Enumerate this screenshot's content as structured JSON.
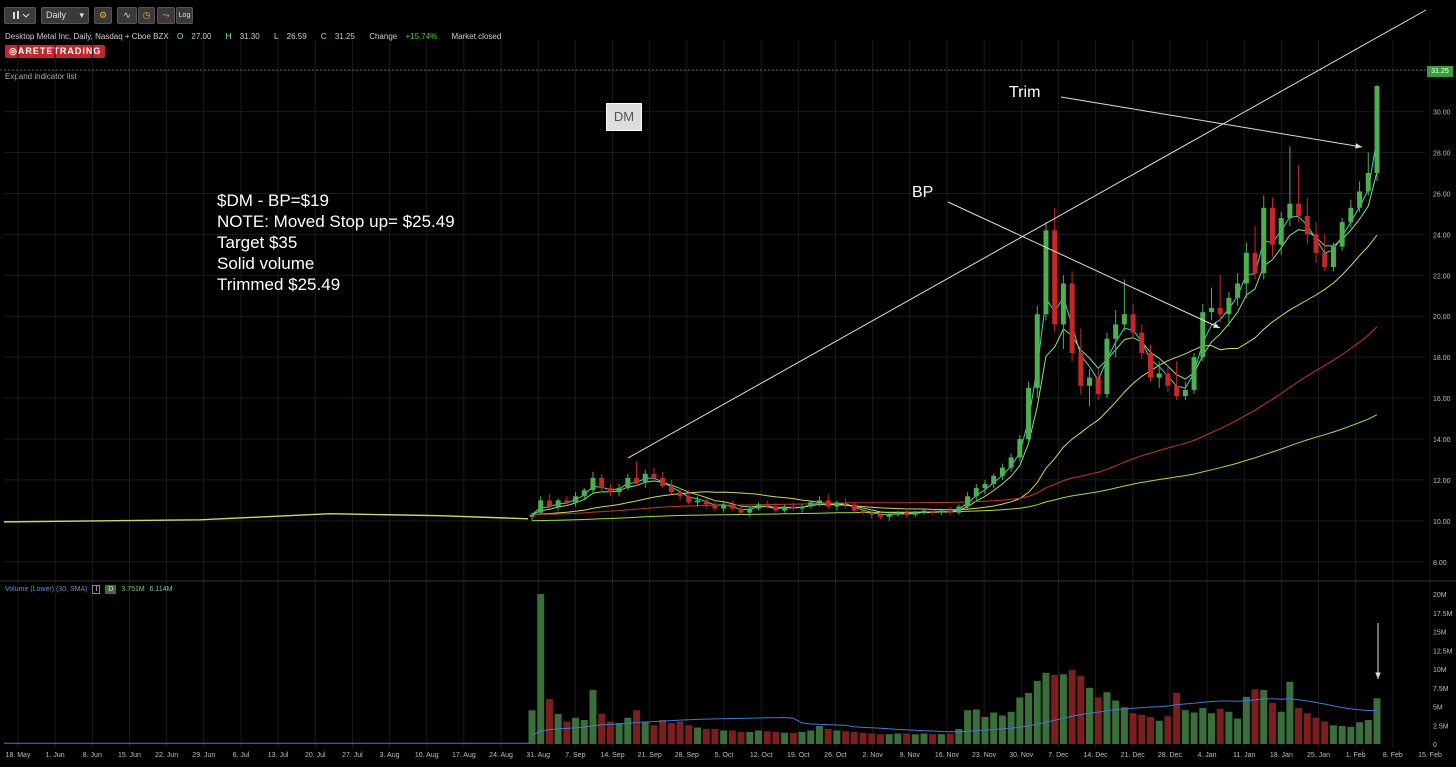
{
  "toolbar": {
    "interval": "Daily",
    "log_label": "Log"
  },
  "header": {
    "symbol_desc": "Desktop Metal Inc, Daily, Nasdaq + Cboe BZX",
    "open_label": "O",
    "open": "27.00",
    "high_label": "H",
    "high": "31.30",
    "low_label": "L",
    "low": "26.59",
    "close_label": "C",
    "close": "31.25",
    "change_label": "Change",
    "change": "+15.74%",
    "status": "Market closed"
  },
  "brand": "ARETETRADING",
  "expand_link": "Expand indicator list",
  "volume_indicator": {
    "name": "Volume (Lower) (30, SMA)",
    "box1": "I",
    "box2": "D",
    "value1": "3.751M",
    "value2": "6.114M"
  },
  "badge": "DM",
  "note_lines": [
    "$DM - BP=$19",
    "NOTE: Moved Stop up= $25.49",
    "Target $35",
    "Solid volume",
    "Trimmed $25.49"
  ],
  "annotations": {
    "trim": "Trim",
    "bp": "BP"
  },
  "last_price_tag": "31.25",
  "colors": {
    "up": "#4caf50",
    "down": "#c62828",
    "vol_up": "#3a6e3a",
    "vol_down": "#7a1e1e",
    "ema_fast": "#3fd0c8",
    "ema_mid": "#8fe07a",
    "ma_50": "#d4d46a",
    "ma_100": "#c0392b",
    "ma_200": "#9be04e",
    "vol_sma": "#3d7ad6",
    "grid": "#1a1a1a"
  },
  "chart_data": {
    "type": "candlestick",
    "price_axis": {
      "ylim": [
        7.5,
        33.5
      ],
      "ticks": [
        "8.00",
        "10.00",
        "12.00",
        "14.00",
        "16.00",
        "18.00",
        "20.00",
        "22.00",
        "24.00",
        "26.00",
        "28.00",
        "30.00",
        "32.00"
      ]
    },
    "volume_axis": {
      "ylim": [
        0,
        20
      ],
      "unit": "M",
      "ticks": [
        "0",
        "2.5M",
        "5M",
        "7.5M",
        "10M",
        "12.5M",
        "15M",
        "17.5M",
        "20M"
      ]
    },
    "x_ticks": [
      "18. May",
      "1. Jun",
      "8. Jun",
      "15. Jun",
      "22. Jun",
      "29. Jun",
      "6. Jul",
      "13. Jul",
      "20. Jul",
      "27. Jul",
      "3. Aug",
      "10. Aug",
      "17. Aug",
      "24. Aug",
      "31. Aug",
      "7. Sep",
      "14. Sep",
      "21. Sep",
      "28. Sep",
      "5. Oct",
      "12. Oct",
      "19. Oct",
      "26. Oct",
      "2. Nov",
      "9. Nov",
      "16. Nov",
      "23. Nov",
      "30. Nov",
      "7. Dec",
      "14. Dec",
      "21. Dec",
      "28. Dec",
      "4. Jan",
      "11. Jan",
      "18. Jan",
      "25. Jan",
      "1. Feb",
      "8. Feb",
      "15. Feb"
    ],
    "candles": [
      {
        "o": 10.2,
        "h": 10.4,
        "l": 10.0,
        "c": 10.3,
        "v": 4.5
      },
      {
        "o": 10.4,
        "h": 11.2,
        "l": 10.3,
        "c": 11.0,
        "v": 20.0
      },
      {
        "o": 11.0,
        "h": 11.3,
        "l": 10.6,
        "c": 10.7,
        "v": 6.0
      },
      {
        "o": 10.7,
        "h": 11.1,
        "l": 10.5,
        "c": 11.0,
        "v": 4.0
      },
      {
        "o": 11.0,
        "h": 11.2,
        "l": 10.8,
        "c": 10.9,
        "v": 3.0
      },
      {
        "o": 10.9,
        "h": 11.4,
        "l": 10.7,
        "c": 11.2,
        "v": 3.5
      },
      {
        "o": 11.2,
        "h": 11.6,
        "l": 11.0,
        "c": 11.5,
        "v": 3.2
      },
      {
        "o": 11.5,
        "h": 12.4,
        "l": 11.3,
        "c": 12.1,
        "v": 7.2
      },
      {
        "o": 12.1,
        "h": 12.3,
        "l": 11.4,
        "c": 11.6,
        "v": 4.0
      },
      {
        "o": 11.6,
        "h": 11.8,
        "l": 11.2,
        "c": 11.4,
        "v": 3.0
      },
      {
        "o": 11.4,
        "h": 11.8,
        "l": 11.2,
        "c": 11.6,
        "v": 2.8
      },
      {
        "o": 11.6,
        "h": 12.3,
        "l": 11.5,
        "c": 12.1,
        "v": 3.5
      },
      {
        "o": 12.1,
        "h": 12.9,
        "l": 11.7,
        "c": 11.9,
        "v": 4.5
      },
      {
        "o": 11.9,
        "h": 12.5,
        "l": 11.6,
        "c": 12.3,
        "v": 3.0
      },
      {
        "o": 12.3,
        "h": 12.6,
        "l": 12.0,
        "c": 12.1,
        "v": 2.5
      },
      {
        "o": 12.1,
        "h": 12.4,
        "l": 11.6,
        "c": 11.7,
        "v": 3.2
      },
      {
        "o": 11.7,
        "h": 12.0,
        "l": 11.3,
        "c": 11.4,
        "v": 2.8
      },
      {
        "o": 11.4,
        "h": 11.6,
        "l": 11.0,
        "c": 11.2,
        "v": 3.0
      },
      {
        "o": 11.2,
        "h": 11.5,
        "l": 10.8,
        "c": 10.9,
        "v": 2.5
      },
      {
        "o": 10.9,
        "h": 11.2,
        "l": 10.7,
        "c": 11.0,
        "v": 2.2
      },
      {
        "o": 11.0,
        "h": 11.1,
        "l": 10.6,
        "c": 10.8,
        "v": 2.0
      },
      {
        "o": 10.8,
        "h": 11.0,
        "l": 10.5,
        "c": 10.6,
        "v": 2.0
      },
      {
        "o": 10.6,
        "h": 10.9,
        "l": 10.4,
        "c": 10.8,
        "v": 1.8
      },
      {
        "o": 10.8,
        "h": 11.0,
        "l": 10.5,
        "c": 10.6,
        "v": 1.8
      },
      {
        "o": 10.6,
        "h": 10.8,
        "l": 10.3,
        "c": 10.4,
        "v": 1.6
      },
      {
        "o": 10.4,
        "h": 10.7,
        "l": 10.2,
        "c": 10.6,
        "v": 1.6
      },
      {
        "o": 10.6,
        "h": 10.9,
        "l": 10.5,
        "c": 10.8,
        "v": 1.8
      },
      {
        "o": 10.8,
        "h": 11.0,
        "l": 10.6,
        "c": 10.7,
        "v": 1.7
      },
      {
        "o": 10.7,
        "h": 10.9,
        "l": 10.4,
        "c": 10.5,
        "v": 1.6
      },
      {
        "o": 10.5,
        "h": 10.8,
        "l": 10.4,
        "c": 10.7,
        "v": 1.5
      },
      {
        "o": 10.7,
        "h": 10.9,
        "l": 10.5,
        "c": 10.6,
        "v": 1.5
      },
      {
        "o": 10.6,
        "h": 10.8,
        "l": 10.4,
        "c": 10.7,
        "v": 1.6
      },
      {
        "o": 10.7,
        "h": 11.0,
        "l": 10.6,
        "c": 10.9,
        "v": 1.8
      },
      {
        "o": 10.9,
        "h": 11.2,
        "l": 10.7,
        "c": 11.0,
        "v": 2.4
      },
      {
        "o": 11.0,
        "h": 11.3,
        "l": 10.6,
        "c": 10.7,
        "v": 2.0
      },
      {
        "o": 10.7,
        "h": 11.0,
        "l": 10.5,
        "c": 10.9,
        "v": 1.8
      },
      {
        "o": 10.9,
        "h": 11.1,
        "l": 10.6,
        "c": 10.8,
        "v": 1.7
      },
      {
        "o": 10.8,
        "h": 10.9,
        "l": 10.4,
        "c": 10.5,
        "v": 1.6
      },
      {
        "o": 10.5,
        "h": 10.7,
        "l": 10.3,
        "c": 10.4,
        "v": 1.5
      },
      {
        "o": 10.4,
        "h": 10.6,
        "l": 10.1,
        "c": 10.3,
        "v": 1.4
      },
      {
        "o": 10.3,
        "h": 10.5,
        "l": 10.1,
        "c": 10.2,
        "v": 1.3
      },
      {
        "o": 10.2,
        "h": 10.4,
        "l": 10.0,
        "c": 10.3,
        "v": 1.3
      },
      {
        "o": 10.3,
        "h": 10.5,
        "l": 10.2,
        "c": 10.4,
        "v": 1.4
      },
      {
        "o": 10.4,
        "h": 10.6,
        "l": 10.2,
        "c": 10.3,
        "v": 1.4
      },
      {
        "o": 10.3,
        "h": 10.5,
        "l": 10.2,
        "c": 10.4,
        "v": 1.3
      },
      {
        "o": 10.4,
        "h": 10.6,
        "l": 10.3,
        "c": 10.5,
        "v": 1.4
      },
      {
        "o": 10.5,
        "h": 10.6,
        "l": 10.3,
        "c": 10.4,
        "v": 1.3
      },
      {
        "o": 10.4,
        "h": 10.6,
        "l": 10.3,
        "c": 10.5,
        "v": 1.3
      },
      {
        "o": 10.5,
        "h": 10.7,
        "l": 10.3,
        "c": 10.4,
        "v": 1.4
      },
      {
        "o": 10.4,
        "h": 10.8,
        "l": 10.3,
        "c": 10.7,
        "v": 2.0
      },
      {
        "o": 10.7,
        "h": 11.4,
        "l": 10.6,
        "c": 11.2,
        "v": 4.5
      },
      {
        "o": 11.2,
        "h": 11.8,
        "l": 11.0,
        "c": 11.6,
        "v": 4.6
      },
      {
        "o": 11.6,
        "h": 12.0,
        "l": 11.3,
        "c": 11.8,
        "v": 3.6
      },
      {
        "o": 11.8,
        "h": 12.3,
        "l": 11.6,
        "c": 12.2,
        "v": 4.2
      },
      {
        "o": 12.2,
        "h": 12.8,
        "l": 12.0,
        "c": 12.6,
        "v": 3.8
      },
      {
        "o": 12.6,
        "h": 13.3,
        "l": 12.4,
        "c": 13.1,
        "v": 4.3
      },
      {
        "o": 13.1,
        "h": 14.2,
        "l": 12.9,
        "c": 14.0,
        "v": 6.2
      },
      {
        "o": 14.0,
        "h": 16.8,
        "l": 13.8,
        "c": 16.5,
        "v": 6.8
      },
      {
        "o": 16.5,
        "h": 20.5,
        "l": 16.0,
        "c": 20.1,
        "v": 8.4
      },
      {
        "o": 20.1,
        "h": 24.6,
        "l": 19.8,
        "c": 24.2,
        "v": 9.5
      },
      {
        "o": 24.2,
        "h": 25.3,
        "l": 19.2,
        "c": 19.6,
        "v": 9.2
      },
      {
        "o": 19.6,
        "h": 22.0,
        "l": 18.4,
        "c": 21.6,
        "v": 9.3
      },
      {
        "o": 21.6,
        "h": 22.2,
        "l": 17.8,
        "c": 18.2,
        "v": 9.9
      },
      {
        "o": 18.2,
        "h": 19.4,
        "l": 16.2,
        "c": 16.6,
        "v": 9.1
      },
      {
        "o": 16.6,
        "h": 17.4,
        "l": 15.6,
        "c": 17.0,
        "v": 7.5
      },
      {
        "o": 17.0,
        "h": 17.4,
        "l": 15.9,
        "c": 16.2,
        "v": 6.2
      },
      {
        "o": 16.2,
        "h": 19.2,
        "l": 16.0,
        "c": 18.9,
        "v": 6.9
      },
      {
        "o": 18.9,
        "h": 20.3,
        "l": 18.0,
        "c": 19.6,
        "v": 5.8
      },
      {
        "o": 19.6,
        "h": 21.8,
        "l": 19.3,
        "c": 20.1,
        "v": 4.9
      },
      {
        "o": 20.1,
        "h": 20.6,
        "l": 18.9,
        "c": 19.2,
        "v": 4.1
      },
      {
        "o": 19.2,
        "h": 19.6,
        "l": 17.9,
        "c": 18.2,
        "v": 3.9
      },
      {
        "o": 18.2,
        "h": 18.6,
        "l": 16.8,
        "c": 17.0,
        "v": 3.6
      },
      {
        "o": 17.0,
        "h": 17.8,
        "l": 16.5,
        "c": 17.2,
        "v": 3.1
      },
      {
        "o": 17.2,
        "h": 17.6,
        "l": 16.3,
        "c": 16.6,
        "v": 3.7
      },
      {
        "o": 16.6,
        "h": 17.8,
        "l": 15.9,
        "c": 16.1,
        "v": 6.8
      },
      {
        "o": 16.1,
        "h": 16.8,
        "l": 15.9,
        "c": 16.4,
        "v": 4.5
      },
      {
        "o": 16.4,
        "h": 18.2,
        "l": 16.2,
        "c": 18.0,
        "v": 4.2
      },
      {
        "o": 18.0,
        "h": 20.6,
        "l": 17.8,
        "c": 20.2,
        "v": 4.8
      },
      {
        "o": 20.2,
        "h": 21.4,
        "l": 19.8,
        "c": 20.4,
        "v": 4.1
      },
      {
        "o": 20.4,
        "h": 22.0,
        "l": 19.7,
        "c": 20.1,
        "v": 4.7
      },
      {
        "o": 20.1,
        "h": 21.2,
        "l": 19.5,
        "c": 20.9,
        "v": 4.3
      },
      {
        "o": 20.9,
        "h": 22.1,
        "l": 20.5,
        "c": 21.6,
        "v": 3.4
      },
      {
        "o": 21.6,
        "h": 23.6,
        "l": 20.9,
        "c": 23.1,
        "v": 6.3
      },
      {
        "o": 23.1,
        "h": 24.4,
        "l": 21.8,
        "c": 22.1,
        "v": 7.3
      },
      {
        "o": 22.1,
        "h": 25.9,
        "l": 21.8,
        "c": 25.3,
        "v": 7.2
      },
      {
        "o": 25.3,
        "h": 25.8,
        "l": 22.9,
        "c": 23.5,
        "v": 5.5
      },
      {
        "o": 23.5,
        "h": 25.1,
        "l": 23.0,
        "c": 24.8,
        "v": 4.3
      },
      {
        "o": 24.8,
        "h": 28.3,
        "l": 24.4,
        "c": 25.5,
        "v": 8.3
      },
      {
        "o": 25.5,
        "h": 27.4,
        "l": 24.6,
        "c": 24.9,
        "v": 4.8
      },
      {
        "o": 24.9,
        "h": 25.8,
        "l": 23.5,
        "c": 24.0,
        "v": 4.1
      },
      {
        "o": 24.0,
        "h": 24.6,
        "l": 22.6,
        "c": 23.1,
        "v": 3.5
      },
      {
        "o": 23.1,
        "h": 24.0,
        "l": 22.2,
        "c": 22.4,
        "v": 3.0
      },
      {
        "o": 22.4,
        "h": 23.6,
        "l": 22.2,
        "c": 23.4,
        "v": 2.5
      },
      {
        "o": 23.4,
        "h": 24.8,
        "l": 23.2,
        "c": 24.6,
        "v": 2.4
      },
      {
        "o": 24.6,
        "h": 25.7,
        "l": 24.3,
        "c": 25.3,
        "v": 2.3
      },
      {
        "o": 25.3,
        "h": 26.6,
        "l": 25.1,
        "c": 26.1,
        "v": 2.9
      },
      {
        "o": 26.1,
        "h": 28.0,
        "l": 25.9,
        "c": 27.0,
        "v": 3.2
      },
      {
        "o": 27.0,
        "h": 31.3,
        "l": 26.6,
        "c": 31.25,
        "v": 6.1
      }
    ]
  }
}
